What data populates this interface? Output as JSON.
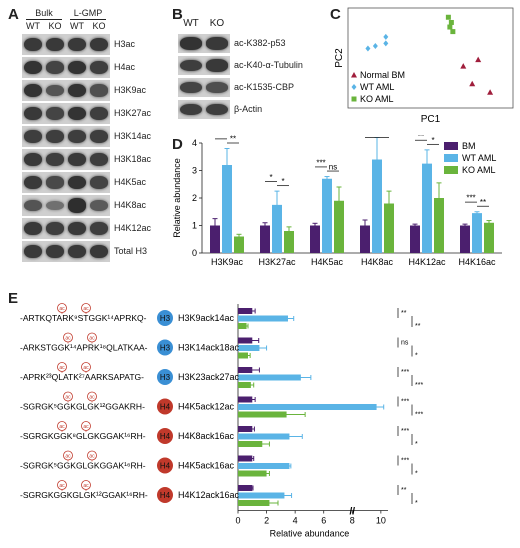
{
  "panelA": {
    "label": "A",
    "groups": [
      "Bulk",
      "L-GMP"
    ],
    "cols": [
      "WT",
      "KO",
      "WT",
      "KO"
    ],
    "rows": [
      {
        "name": "H3ac",
        "bands": [
          0.85,
          0.85,
          0.85,
          0.85
        ]
      },
      {
        "name": "H4ac",
        "bands": [
          0.9,
          0.75,
          0.9,
          0.8
        ]
      },
      {
        "name": "H3K9ac",
        "bands": [
          0.9,
          0.6,
          0.9,
          0.65
        ]
      },
      {
        "name": "H3K27ac",
        "bands": [
          0.85,
          0.75,
          0.9,
          0.8
        ]
      },
      {
        "name": "H3K14ac",
        "bands": [
          0.8,
          0.8,
          0.8,
          0.8
        ]
      },
      {
        "name": "H3K18ac",
        "bands": [
          0.85,
          0.8,
          0.85,
          0.8
        ]
      },
      {
        "name": "H4K5ac",
        "bands": [
          0.85,
          0.7,
          0.9,
          0.75
        ]
      },
      {
        "name": "H4K8ac",
        "bands": [
          0.6,
          0.35,
          0.95,
          0.55
        ]
      },
      {
        "name": "H4K12ac",
        "bands": [
          0.85,
          0.8,
          0.85,
          0.8
        ]
      },
      {
        "name": "Total H3",
        "bands": [
          0.85,
          0.85,
          0.85,
          0.85
        ]
      }
    ]
  },
  "panelB": {
    "label": "B",
    "cols": [
      "WT",
      "KO"
    ],
    "rows": [
      {
        "name": "ac-K382-p53",
        "bands": [
          0.9,
          0.85
        ]
      },
      {
        "name": "ac-K40-α-Tubulin",
        "bands": [
          0.8,
          0.85
        ]
      },
      {
        "name": "ac-K1535-CBP",
        "bands": [
          0.75,
          0.65
        ]
      },
      {
        "name": "β-Actin",
        "bands": [
          0.8,
          0.8
        ]
      }
    ]
  },
  "panelC": {
    "label": "C",
    "xlabel": "PC1",
    "ylabel": "PC2",
    "legend": [
      {
        "name": "Normal BM",
        "color": "#a01e3c",
        "marker": "triangle"
      },
      {
        "name": "WT AML",
        "color": "#5ab4e6",
        "marker": "diamond"
      },
      {
        "name": "KO AML",
        "color": "#6ab43c",
        "marker": "square"
      }
    ],
    "points": {
      "Normal BM": [
        [
          0.72,
          0.55
        ],
        [
          0.82,
          0.65
        ],
        [
          0.78,
          0.28
        ],
        [
          0.9,
          0.15
        ]
      ],
      "WT AML": [
        [
          0.08,
          0.82
        ],
        [
          0.13,
          0.86
        ],
        [
          0.2,
          0.9
        ],
        [
          0.2,
          1.0
        ]
      ],
      "KO AML": [
        [
          0.62,
          1.3
        ],
        [
          0.64,
          1.22
        ],
        [
          0.63,
          1.15
        ],
        [
          0.65,
          1.08
        ]
      ]
    }
  },
  "panelD": {
    "label": "D",
    "chart_data": {
      "type": "bar",
      "ylabel": "Relative abundance",
      "ylim": [
        0,
        4
      ],
      "yticks": [
        0,
        1,
        2,
        3,
        4
      ],
      "categories": [
        "H3K9ac",
        "H3K27ac",
        "H4K5ac",
        "H4K8ac",
        "H4K12ac",
        "H4K16ac"
      ],
      "series": [
        {
          "name": "BM",
          "color": "#4b1f6e",
          "values": [
            1.0,
            1.0,
            1.0,
            1.0,
            1.0,
            1.0
          ],
          "errors": [
            0.25,
            0.1,
            0.08,
            0.2,
            0.05,
            0.05
          ]
        },
        {
          "name": "WT AML",
          "color": "#5ab4e6",
          "values": [
            3.2,
            1.75,
            2.7,
            3.4,
            3.25,
            1.45
          ],
          "errors": [
            0.6,
            0.5,
            0.08,
            0.8,
            0.5,
            0.05
          ]
        },
        {
          "name": "KO AML",
          "color": "#6ab43c",
          "values": [
            0.6,
            0.8,
            1.9,
            1.8,
            2.0,
            1.1
          ],
          "errors": [
            0.08,
            0.15,
            0.5,
            0.45,
            0.55,
            0.08
          ]
        }
      ],
      "significance": [
        "**",
        "**",
        "*",
        "*",
        "***",
        "ns",
        "**",
        "*",
        "**",
        "*",
        "***",
        "**"
      ],
      "legend": "top-right"
    }
  },
  "panelE": {
    "label": "E",
    "chart_data": {
      "type": "bar",
      "orientation": "horizontal",
      "xlabel": "Relative abundance",
      "xticks": [
        0,
        2,
        4,
        6,
        8,
        10
      ],
      "xlim": [
        0,
        10.5
      ],
      "axis_break": "//",
      "categories": [
        "H3K9ack14ac",
        "H3K14ack18ac",
        "H3K23ack27ac",
        "H4K5ack12ac",
        "H4K8ack16ac",
        "H4K5ack16ac",
        "H4K12ack16ac"
      ],
      "histone": [
        "H3",
        "H3",
        "H3",
        "H4",
        "H4",
        "H4",
        "H4"
      ],
      "sequences": [
        "-ARTKQTARK⁹STGGK¹⁴APRKQ-",
        "-ARKSTGGK¹⁴APRK¹⁸QLATKAA-",
        "-APRK²³QLATK²⁷AARKSAPATG-",
        "-SGRGK⁵GGKGLGK¹²GGAKRH-",
        "-SGRGKGGK⁸GLGKGGAK¹⁶RH-",
        "-SGRGK⁵GGKGLGKGGAK¹⁶RH-",
        "-SGRGKGGKGLGK¹²GGAK¹⁶RH-"
      ],
      "ac_label": "ac",
      "series": [
        {
          "name": "BM",
          "color": "#4b1f6e",
          "values": [
            1.0,
            1.0,
            1.0,
            1.0,
            1.0,
            1.0,
            1.0
          ],
          "errors": [
            0.2,
            0.45,
            0.5,
            0.2,
            0.15,
            0.1,
            0.05
          ]
        },
        {
          "name": "WT AML",
          "color": "#5ab4e6",
          "values": [
            3.5,
            1.5,
            4.4,
            9.7,
            3.6,
            3.6,
            3.25
          ],
          "errors": [
            0.4,
            0.5,
            0.7,
            0.5,
            0.9,
            0.1,
            0.5
          ]
        },
        {
          "name": "KO AML",
          "color": "#6ab43c",
          "values": [
            0.6,
            0.7,
            0.9,
            3.4,
            1.7,
            2.0,
            2.2
          ],
          "errors": [
            0.1,
            0.15,
            0.2,
            1.3,
            0.5,
            0.2,
            0.6
          ]
        }
      ],
      "significance": [
        [
          "**",
          "**"
        ],
        [
          "ns",
          "*"
        ],
        [
          "***",
          "***"
        ],
        [
          "***",
          "***"
        ],
        [
          "***",
          "*"
        ],
        [
          "***",
          "*"
        ],
        [
          "**",
          "*"
        ]
      ]
    }
  }
}
